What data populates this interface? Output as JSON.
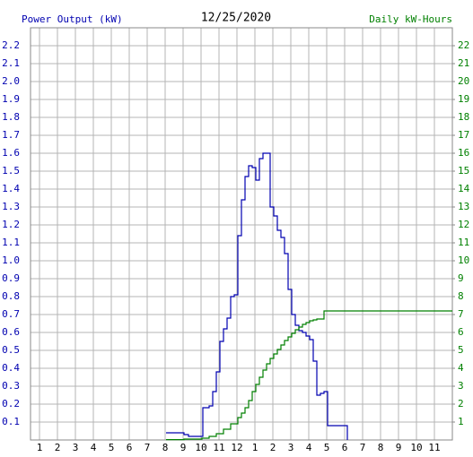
{
  "chart_data": {
    "type": "line",
    "step": true,
    "title": "12/25/2020",
    "ylabel": "Power Output (kW)",
    "y2label": "Daily kW-Hours",
    "grid": true,
    "xlim": [
      0.5,
      24
    ],
    "xticks": [
      {
        "value": 1,
        "label": "1"
      },
      {
        "value": 2,
        "label": "2"
      },
      {
        "value": 3,
        "label": "3"
      },
      {
        "value": 4,
        "label": "4"
      },
      {
        "value": 5,
        "label": "5"
      },
      {
        "value": 6,
        "label": "6"
      },
      {
        "value": 7,
        "label": "7"
      },
      {
        "value": 8,
        "label": "8"
      },
      {
        "value": 9,
        "label": "9"
      },
      {
        "value": 10,
        "label": "10"
      },
      {
        "value": 11,
        "label": "11"
      },
      {
        "value": 12,
        "label": "12"
      },
      {
        "value": 13,
        "label": "1"
      },
      {
        "value": 14,
        "label": "2"
      },
      {
        "value": 15,
        "label": "3"
      },
      {
        "value": 16,
        "label": "4"
      },
      {
        "value": 17,
        "label": "5"
      },
      {
        "value": 18,
        "label": "6"
      },
      {
        "value": 19,
        "label": "7"
      },
      {
        "value": 20,
        "label": "8"
      },
      {
        "value": 21,
        "label": "9"
      },
      {
        "value": 22,
        "label": "10"
      },
      {
        "value": 23,
        "label": "11"
      }
    ],
    "ylim": [
      0,
      2.3
    ],
    "yticks": [
      0.1,
      0.2,
      0.3,
      0.4,
      0.5,
      0.6,
      0.7,
      0.8,
      0.9,
      {
        "value": 1,
        "label": "1.0"
      },
      1.1,
      1.2,
      1.3,
      1.4,
      1.5,
      1.6,
      1.7,
      1.8,
      1.9,
      {
        "value": 2,
        "label": "2.0"
      },
      2.1,
      2.2
    ],
    "y2lim": [
      0,
      23
    ],
    "y2ticks": [
      1,
      2,
      3,
      4,
      5,
      6,
      7,
      8,
      9,
      10,
      11,
      12,
      13,
      14,
      15,
      16,
      17,
      18,
      19,
      20,
      21,
      22
    ],
    "series": [
      {
        "name": "Power Output (kW)",
        "color": "#0000b0",
        "x": [
          8.05,
          9.05,
          9.3,
          10.1,
          10.45,
          10.65,
          10.85,
          11.05,
          11.25,
          11.45,
          11.65,
          11.85,
          12.05,
          12.25,
          12.45,
          12.65,
          12.85,
          13.05,
          13.25,
          13.45,
          13.85,
          14.05,
          14.25,
          14.45,
          14.65,
          14.85,
          15.05,
          15.25,
          15.45,
          15.65,
          15.85,
          16.05,
          16.25,
          16.45,
          16.65,
          16.85,
          17.05,
          18.15
        ],
        "values": [
          0.04,
          0.03,
          0.02,
          0.18,
          0.19,
          0.27,
          0.38,
          0.55,
          0.62,
          0.68,
          0.8,
          0.81,
          1.14,
          1.34,
          1.47,
          1.53,
          1.52,
          1.45,
          1.57,
          1.6,
          1.3,
          1.25,
          1.17,
          1.13,
          1.04,
          0.84,
          0.7,
          0.64,
          0.61,
          0.6,
          0.58,
          0.56,
          0.44,
          0.25,
          0.26,
          0.27,
          0.08,
          0
        ]
      },
      {
        "name": "Daily kW-Hours",
        "color": "#008000",
        "axis": "y2",
        "x": [
          8.05,
          9.05,
          10.05,
          10.45,
          10.85,
          11.25,
          11.65,
          12.05,
          12.25,
          12.45,
          12.65,
          12.85,
          13.05,
          13.25,
          13.45,
          13.65,
          13.85,
          14.05,
          14.25,
          14.45,
          14.65,
          14.85,
          15.05,
          15.25,
          15.45,
          15.65,
          15.85,
          16.05,
          16.25,
          16.45,
          16.85,
          24
        ],
        "values": [
          0.02,
          0.05,
          0.1,
          0.2,
          0.35,
          0.6,
          0.9,
          1.25,
          1.5,
          1.8,
          2.2,
          2.7,
          3.1,
          3.5,
          3.9,
          4.25,
          4.55,
          4.8,
          5.05,
          5.3,
          5.55,
          5.75,
          5.95,
          6.15,
          6.3,
          6.45,
          6.55,
          6.65,
          6.7,
          6.75,
          7.2,
          7.2
        ]
      }
    ]
  }
}
